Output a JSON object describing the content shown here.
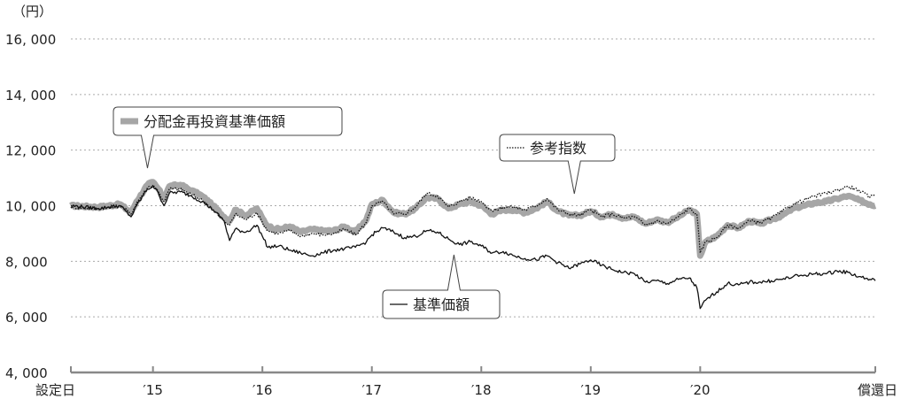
{
  "chart_data": {
    "type": "line",
    "unit_label": "（円）",
    "ylim": [
      4000,
      16000
    ],
    "y_ticks": [
      4000,
      6000,
      8000,
      10000,
      12000,
      14000,
      16000
    ],
    "y_tick_labels": [
      "4, 000",
      "6, 000",
      "8, 000",
      "10, 000",
      "12, 000",
      "14, 000",
      "16, 000"
    ],
    "grid": "horizontal dotted",
    "x_tick_labels": [
      "設定日",
      "′15",
      "′16",
      "′17",
      "′18",
      "′19",
      "′20",
      "償還日"
    ],
    "x_tick_positions": [
      0,
      0.75,
      1.75,
      2.75,
      3.75,
      4.75,
      5.75,
      7.35
    ],
    "xlim": [
      0,
      7.35
    ],
    "colors": {
      "reinvested": "#a6a6a6",
      "base_price": "#111111",
      "reference_index": "#111111",
      "axis": "#888888",
      "grid": "#aaaaaa"
    },
    "series": [
      {
        "name": "分配金再投資基準価額",
        "style": "thick-gray",
        "points": [
          [
            0,
            10000
          ],
          [
            0.25,
            9950
          ],
          [
            0.45,
            10050
          ],
          [
            0.55,
            9750
          ],
          [
            0.6,
            10150
          ],
          [
            0.7,
            10750
          ],
          [
            0.75,
            10850
          ],
          [
            0.8,
            10600
          ],
          [
            0.85,
            10250
          ],
          [
            0.9,
            10700
          ],
          [
            1.0,
            10750
          ],
          [
            1.1,
            10550
          ],
          [
            1.2,
            10350
          ],
          [
            1.3,
            10000
          ],
          [
            1.4,
            9600
          ],
          [
            1.45,
            9450
          ],
          [
            1.5,
            9850
          ],
          [
            1.6,
            9650
          ],
          [
            1.7,
            9900
          ],
          [
            1.75,
            9550
          ],
          [
            1.8,
            9250
          ],
          [
            1.9,
            9150
          ],
          [
            2.0,
            9250
          ],
          [
            2.1,
            9050
          ],
          [
            2.2,
            9150
          ],
          [
            2.3,
            9100
          ],
          [
            2.4,
            9100
          ],
          [
            2.5,
            9250
          ],
          [
            2.6,
            9050
          ],
          [
            2.7,
            9500
          ],
          [
            2.75,
            10050
          ],
          [
            2.85,
            10200
          ],
          [
            2.95,
            9750
          ],
          [
            3.05,
            9700
          ],
          [
            3.15,
            9900
          ],
          [
            3.25,
            10300
          ],
          [
            3.35,
            10250
          ],
          [
            3.45,
            9900
          ],
          [
            3.55,
            10050
          ],
          [
            3.65,
            10150
          ],
          [
            3.75,
            10000
          ],
          [
            3.85,
            9700
          ],
          [
            3.95,
            9850
          ],
          [
            4.05,
            9850
          ],
          [
            4.15,
            9750
          ],
          [
            4.25,
            9900
          ],
          [
            4.35,
            10150
          ],
          [
            4.45,
            9800
          ],
          [
            4.55,
            9650
          ],
          [
            4.65,
            9650
          ],
          [
            4.75,
            9800
          ],
          [
            4.85,
            9600
          ],
          [
            4.95,
            9700
          ],
          [
            5.05,
            9550
          ],
          [
            5.15,
            9600
          ],
          [
            5.25,
            9350
          ],
          [
            5.35,
            9500
          ],
          [
            5.45,
            9400
          ],
          [
            5.55,
            9600
          ],
          [
            5.65,
            9850
          ],
          [
            5.72,
            9700
          ],
          [
            5.75,
            8200
          ],
          [
            5.8,
            8700
          ],
          [
            5.9,
            8900
          ],
          [
            6.0,
            9300
          ],
          [
            6.1,
            9200
          ],
          [
            6.2,
            9450
          ],
          [
            6.3,
            9350
          ],
          [
            6.4,
            9500
          ],
          [
            6.5,
            9650
          ],
          [
            6.6,
            9900
          ],
          [
            6.7,
            10000
          ],
          [
            6.8,
            10100
          ],
          [
            6.9,
            10150
          ],
          [
            7.0,
            10250
          ],
          [
            7.1,
            10350
          ],
          [
            7.2,
            10200
          ],
          [
            7.3,
            10050
          ],
          [
            7.35,
            10000
          ]
        ]
      },
      {
        "name": "基準価額",
        "style": "thin-black",
        "points": [
          [
            0,
            10000
          ],
          [
            0.25,
            9900
          ],
          [
            0.45,
            10000
          ],
          [
            0.55,
            9600
          ],
          [
            0.6,
            10000
          ],
          [
            0.7,
            10600
          ],
          [
            0.75,
            10700
          ],
          [
            0.8,
            10450
          ],
          [
            0.85,
            10000
          ],
          [
            0.9,
            10450
          ],
          [
            1.0,
            10500
          ],
          [
            1.1,
            10350
          ],
          [
            1.2,
            10150
          ],
          [
            1.3,
            9850
          ],
          [
            1.4,
            9450
          ],
          [
            1.45,
            8750
          ],
          [
            1.5,
            9150
          ],
          [
            1.6,
            9050
          ],
          [
            1.7,
            9300
          ],
          [
            1.75,
            8900
          ],
          [
            1.8,
            8500
          ],
          [
            1.9,
            8550
          ],
          [
            2.0,
            8400
          ],
          [
            2.1,
            8300
          ],
          [
            2.2,
            8200
          ],
          [
            2.3,
            8300
          ],
          [
            2.4,
            8400
          ],
          [
            2.5,
            8450
          ],
          [
            2.6,
            8500
          ],
          [
            2.7,
            8700
          ],
          [
            2.75,
            8950
          ],
          [
            2.85,
            9200
          ],
          [
            2.95,
            9050
          ],
          [
            3.05,
            8850
          ],
          [
            3.15,
            8900
          ],
          [
            3.25,
            9100
          ],
          [
            3.35,
            9050
          ],
          [
            3.45,
            8800
          ],
          [
            3.55,
            8600
          ],
          [
            3.65,
            8700
          ],
          [
            3.75,
            8550
          ],
          [
            3.85,
            8300
          ],
          [
            3.95,
            8350
          ],
          [
            4.05,
            8200
          ],
          [
            4.15,
            8100
          ],
          [
            4.25,
            8050
          ],
          [
            4.35,
            8200
          ],
          [
            4.45,
            7950
          ],
          [
            4.55,
            7750
          ],
          [
            4.65,
            7900
          ],
          [
            4.75,
            8050
          ],
          [
            4.85,
            7850
          ],
          [
            4.95,
            7700
          ],
          [
            5.05,
            7600
          ],
          [
            5.15,
            7550
          ],
          [
            5.25,
            7250
          ],
          [
            5.35,
            7300
          ],
          [
            5.45,
            7200
          ],
          [
            5.55,
            7350
          ],
          [
            5.65,
            7400
          ],
          [
            5.72,
            7050
          ],
          [
            5.75,
            6300
          ],
          [
            5.8,
            6600
          ],
          [
            5.9,
            6900
          ],
          [
            6.0,
            7200
          ],
          [
            6.1,
            7150
          ],
          [
            6.2,
            7250
          ],
          [
            6.3,
            7250
          ],
          [
            6.4,
            7300
          ],
          [
            6.5,
            7350
          ],
          [
            6.6,
            7450
          ],
          [
            6.7,
            7500
          ],
          [
            6.8,
            7550
          ],
          [
            6.9,
            7550
          ],
          [
            7.0,
            7650
          ],
          [
            7.1,
            7600
          ],
          [
            7.2,
            7450
          ],
          [
            7.3,
            7350
          ],
          [
            7.35,
            7300
          ]
        ]
      },
      {
        "name": "参考指数",
        "style": "dotted-black",
        "points": [
          [
            0,
            9950
          ],
          [
            0.25,
            9900
          ],
          [
            0.45,
            10000
          ],
          [
            0.55,
            9700
          ],
          [
            0.6,
            10100
          ],
          [
            0.7,
            10650
          ],
          [
            0.75,
            10750
          ],
          [
            0.8,
            10500
          ],
          [
            0.85,
            10150
          ],
          [
            0.9,
            10600
          ],
          [
            1.0,
            10600
          ],
          [
            1.1,
            10400
          ],
          [
            1.2,
            10200
          ],
          [
            1.3,
            9850
          ],
          [
            1.4,
            9450
          ],
          [
            1.45,
            9300
          ],
          [
            1.5,
            9700
          ],
          [
            1.6,
            9500
          ],
          [
            1.7,
            9750
          ],
          [
            1.75,
            9400
          ],
          [
            1.8,
            9100
          ],
          [
            1.9,
            9000
          ],
          [
            2.0,
            9100
          ],
          [
            2.1,
            8900
          ],
          [
            2.2,
            9000
          ],
          [
            2.3,
            8950
          ],
          [
            2.4,
            9000
          ],
          [
            2.5,
            9150
          ],
          [
            2.6,
            8950
          ],
          [
            2.7,
            9400
          ],
          [
            2.75,
            10000
          ],
          [
            2.85,
            10150
          ],
          [
            2.95,
            9700
          ],
          [
            3.05,
            9700
          ],
          [
            3.15,
            9950
          ],
          [
            3.25,
            10450
          ],
          [
            3.35,
            10350
          ],
          [
            3.45,
            9950
          ],
          [
            3.55,
            10150
          ],
          [
            3.65,
            10300
          ],
          [
            3.75,
            10150
          ],
          [
            3.85,
            9800
          ],
          [
            3.95,
            9950
          ],
          [
            4.05,
            9950
          ],
          [
            4.15,
            9850
          ],
          [
            4.25,
            10000
          ],
          [
            4.35,
            10250
          ],
          [
            4.45,
            9850
          ],
          [
            4.55,
            9700
          ],
          [
            4.65,
            9650
          ],
          [
            4.75,
            9850
          ],
          [
            4.85,
            9600
          ],
          [
            4.95,
            9700
          ],
          [
            5.05,
            9550
          ],
          [
            5.15,
            9600
          ],
          [
            5.25,
            9300
          ],
          [
            5.35,
            9450
          ],
          [
            5.45,
            9350
          ],
          [
            5.55,
            9600
          ],
          [
            5.65,
            9900
          ],
          [
            5.72,
            9700
          ],
          [
            5.75,
            8300
          ],
          [
            5.8,
            8700
          ],
          [
            5.9,
            8850
          ],
          [
            6.0,
            9300
          ],
          [
            6.1,
            9200
          ],
          [
            6.2,
            9450
          ],
          [
            6.3,
            9400
          ],
          [
            6.4,
            9550
          ],
          [
            6.5,
            9800
          ],
          [
            6.6,
            10050
          ],
          [
            6.7,
            10200
          ],
          [
            6.8,
            10350
          ],
          [
            6.9,
            10450
          ],
          [
            7.0,
            10550
          ],
          [
            7.1,
            10700
          ],
          [
            7.2,
            10550
          ],
          [
            7.3,
            10300
          ],
          [
            7.35,
            10400
          ]
        ]
      }
    ],
    "annotations": [
      {
        "series": "分配金再投資基準価額",
        "text": "分配金再投資基準価額",
        "target_x": 0.7,
        "target_y": 11300,
        "style": "thick-gray"
      },
      {
        "series": "参考指数",
        "text": "参考指数",
        "target_x": 4.6,
        "target_y": 10300,
        "style": "dotted-black"
      },
      {
        "series": "基準価額",
        "text": "基準価額",
        "target_x": 3.5,
        "target_y": 8150,
        "style": "thin-black"
      }
    ]
  }
}
